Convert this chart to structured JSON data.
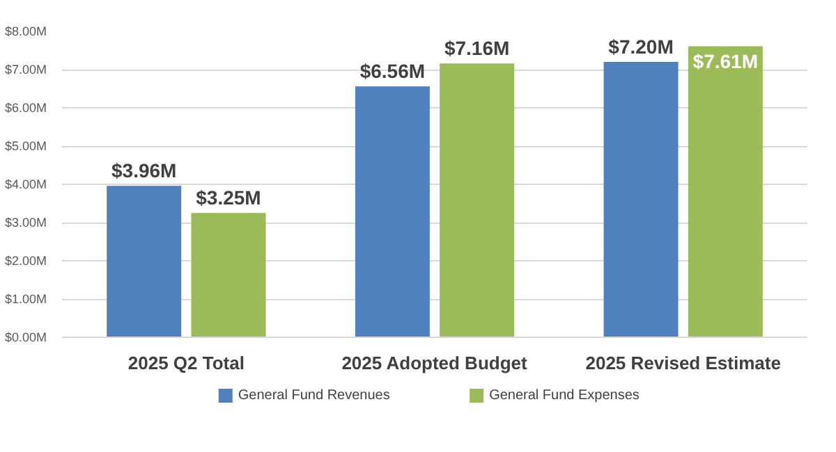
{
  "chart_data": {
    "type": "bar",
    "categories": [
      "2025 Q2 Total",
      "2025 Adopted Budget",
      "2025 Revised Estimate"
    ],
    "series": [
      {
        "name": "General Fund Revenues",
        "color": "#4f81bd",
        "values": [
          3.96,
          6.56,
          7.2
        ],
        "value_labels": [
          "$3.96M",
          "$6.56M",
          "$7.20M"
        ]
      },
      {
        "name": "General Fund Expenses",
        "color": "#9bbb59",
        "values": [
          3.25,
          7.16,
          7.61
        ],
        "value_labels": [
          "$3.25M",
          "$7.16M",
          "$7.61M"
        ]
      }
    ],
    "ylim": [
      0,
      8
    ],
    "yticks": [
      {
        "value": 0,
        "label": "$0.00M"
      },
      {
        "value": 1,
        "label": "$1.00M"
      },
      {
        "value": 2,
        "label": "$2.00M"
      },
      {
        "value": 3,
        "label": "$3.00M"
      },
      {
        "value": 4,
        "label": "$4.00M"
      },
      {
        "value": 5,
        "label": "$5.00M"
      },
      {
        "value": 6,
        "label": "$6.00M"
      },
      {
        "value": 7,
        "label": "$7.00M"
      },
      {
        "value": 8,
        "label": "$8.00M"
      }
    ],
    "grid": "y",
    "legend": "bottom"
  }
}
